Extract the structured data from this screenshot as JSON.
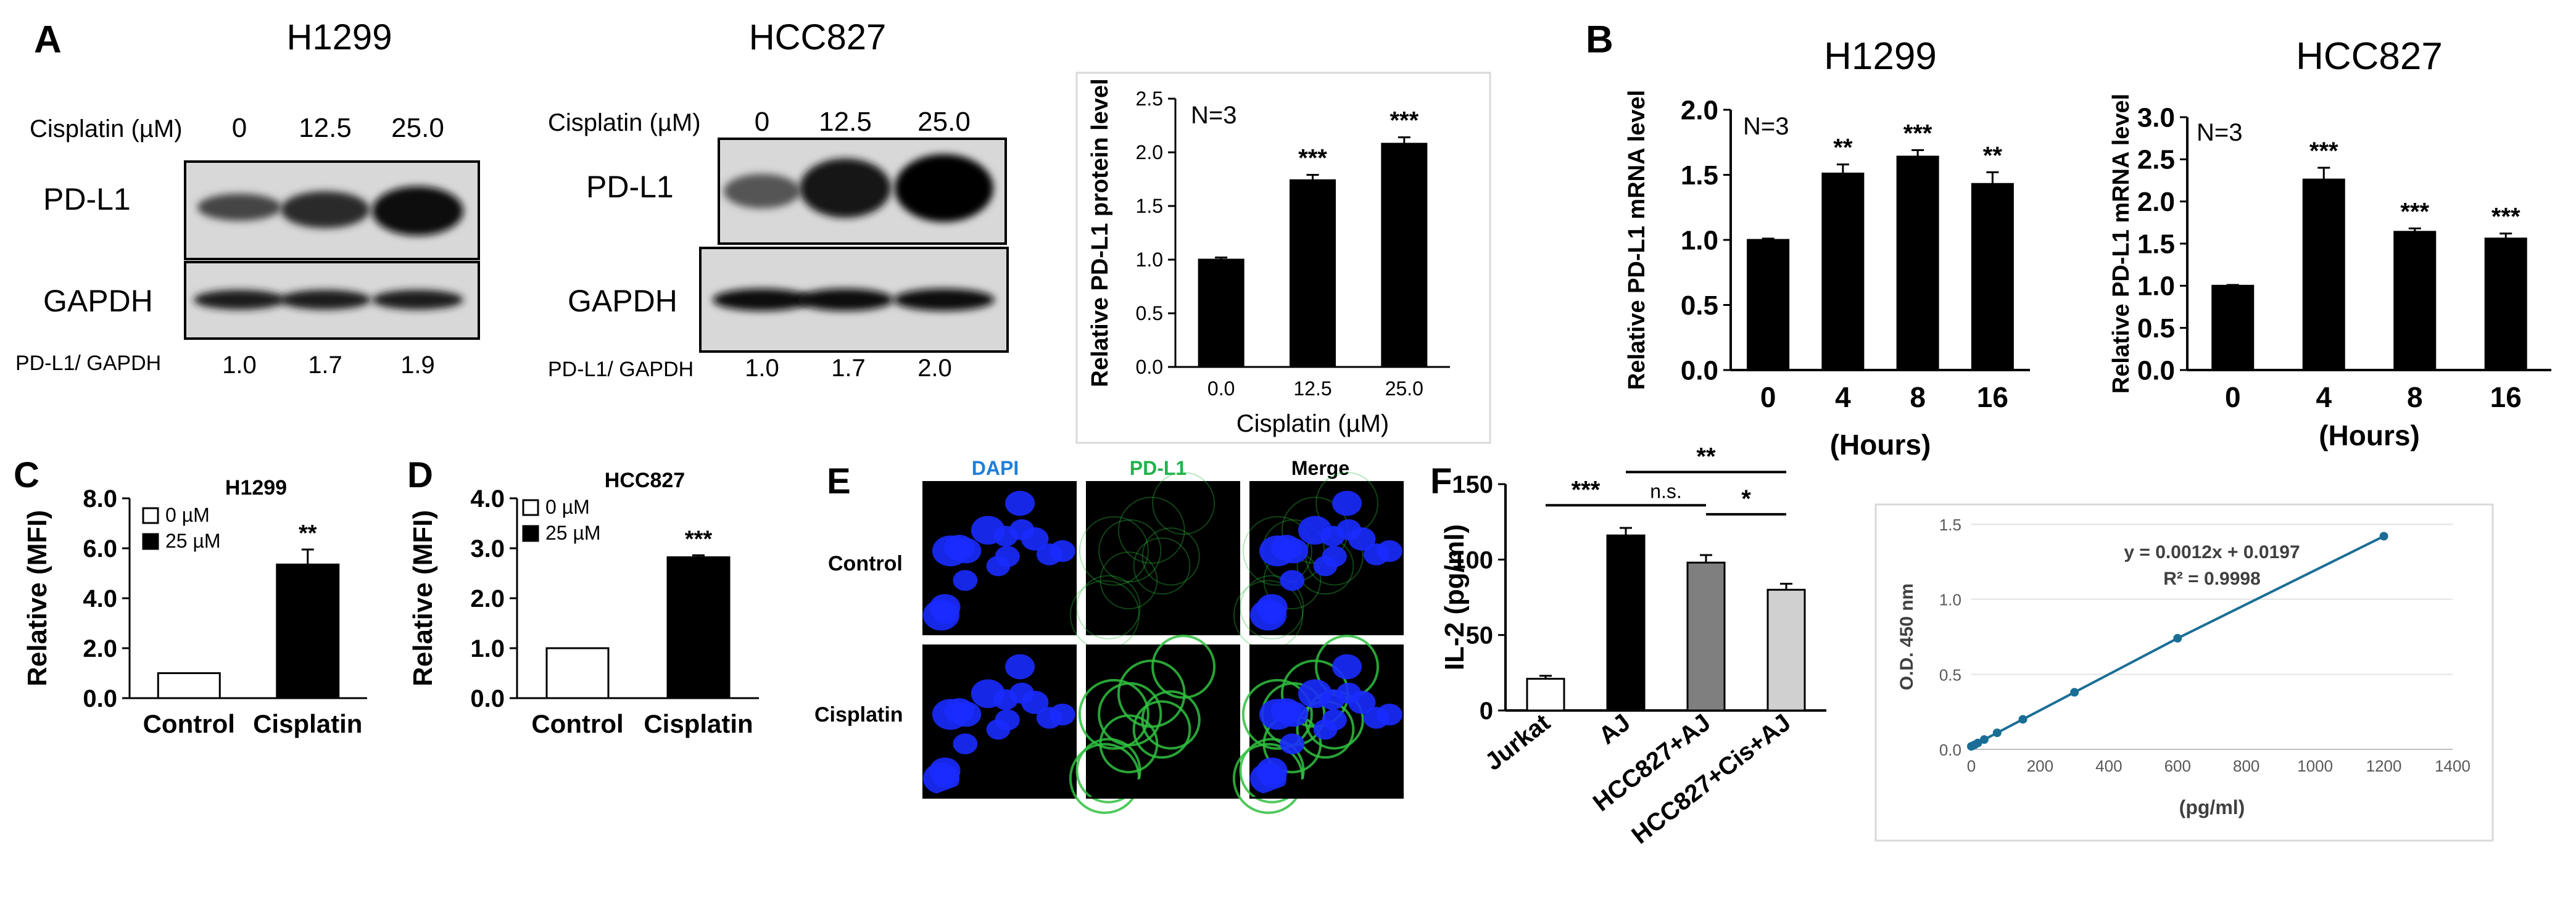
{
  "panel_letters": [
    "A",
    "B",
    "C",
    "D",
    "E",
    "F"
  ],
  "panelA": {
    "h1299": {
      "title": "H1299",
      "treatment_label": "Cisplatin (µM)",
      "doses": [
        "0",
        "12.5",
        "25.0"
      ],
      "bands": [
        "PD-L1",
        "GAPDH"
      ],
      "ratio_label": "PD-L1/ GAPDH",
      "ratios": [
        "1.0",
        "1.7",
        "1.9"
      ]
    },
    "hcc827": {
      "title": "HCC827",
      "treatment_label": "Cisplatin (µM)",
      "doses": [
        "0",
        "12.5",
        "25.0"
      ],
      "bands": [
        "PD-L1",
        "GAPDH"
      ],
      "ratio_label": "PD-L1/ GAPDH",
      "ratios": [
        "1.0",
        "1.7",
        "2.0"
      ]
    }
  },
  "panelE": {
    "channels": [
      "DAPI",
      "PD-L1",
      "Merge"
    ],
    "channel_colors": [
      "#1f7fd8",
      "#22b24c",
      "#000000"
    ],
    "rows": [
      "Control",
      "Cisplatin"
    ]
  },
  "chart_data": [
    {
      "id": "A-bar",
      "type": "bar",
      "categories": [
        "0.0",
        "12.5",
        "25.0"
      ],
      "values": [
        1.0,
        1.74,
        2.08
      ],
      "errors": [
        0.02,
        0.05,
        0.06
      ],
      "significance": [
        "",
        "***",
        "***"
      ],
      "xlabel": "Cisplatin (µM)",
      "ylabel": "Relative PD-L1 protein level",
      "ylim": [
        0,
        2.5
      ],
      "yticks": [
        "0.0",
        "0.5",
        "1.0",
        "1.5",
        "2.0",
        "2.5"
      ],
      "annotation": "N=3",
      "bar_color": "#000000"
    },
    {
      "id": "B-H1299",
      "type": "bar",
      "title": "H1299",
      "categories": [
        "0",
        "4",
        "8",
        "16"
      ],
      "values": [
        1.0,
        1.51,
        1.64,
        1.43
      ],
      "errors": [
        0.01,
        0.07,
        0.05,
        0.09
      ],
      "significance": [
        "",
        "**",
        "***",
        "**"
      ],
      "xlabel": "(Hours)",
      "ylabel": "Relative PD-L1 mRNA level",
      "ylim": [
        0,
        2.0
      ],
      "yticks": [
        "0.0",
        "0.5",
        "1.0",
        "1.5",
        "2.0"
      ],
      "annotation": "N=3",
      "bar_color": "#000000"
    },
    {
      "id": "B-HCC827",
      "type": "bar",
      "title": "HCC827",
      "categories": [
        "0",
        "4",
        "8",
        "16"
      ],
      "values": [
        1.0,
        2.26,
        1.64,
        1.56
      ],
      "errors": [
        0.01,
        0.14,
        0.04,
        0.06
      ],
      "significance": [
        "",
        "***",
        "***",
        "***"
      ],
      "xlabel": "(Hours)",
      "ylabel": "Relative PD-L1 mRNA level",
      "ylim": [
        0,
        3.0
      ],
      "yticks": [
        "0.0",
        "0.5",
        "1.0",
        "1.5",
        "2.0",
        "2.5",
        "3.0"
      ],
      "annotation": "N=3",
      "bar_color": "#000000"
    },
    {
      "id": "C",
      "type": "bar",
      "title": "H1299",
      "categories": [
        "Control",
        "Cisplatin"
      ],
      "values": [
        1.0,
        5.35
      ],
      "errors": [
        0,
        0.6
      ],
      "significance": [
        "",
        "**"
      ],
      "ylabel": "Relative (MFI)",
      "ylim": [
        0,
        8.0
      ],
      "yticks": [
        "0.0",
        "2.0",
        "4.0",
        "6.0",
        "8.0"
      ],
      "legend": [
        "0 µM",
        "25 µM"
      ],
      "fills": [
        "#ffffff",
        "#000000"
      ]
    },
    {
      "id": "D",
      "type": "bar",
      "title": "HCC827",
      "categories": [
        "Control",
        "Cisplatin"
      ],
      "values": [
        1.0,
        2.82
      ],
      "errors": [
        0,
        0.04
      ],
      "significance": [
        "",
        "***"
      ],
      "ylabel": "Relative (MFI)",
      "ylim": [
        0,
        4.0
      ],
      "yticks": [
        "0.0",
        "1.0",
        "2.0",
        "3.0",
        "4.0"
      ],
      "legend": [
        "0 µM",
        "25 µM"
      ],
      "fills": [
        "#ffffff",
        "#000000"
      ]
    },
    {
      "id": "F-bar",
      "type": "bar",
      "categories": [
        "Jurkat",
        "AJ",
        "HCC827+AJ",
        "HCC827+Cis+AJ"
      ],
      "values": [
        21,
        116,
        98,
        80
      ],
      "errors": [
        2,
        5,
        5,
        4
      ],
      "ylabel": "IL-2 (pg/ml)",
      "ylim": [
        0,
        150
      ],
      "yticks": [
        "0",
        "50",
        "100",
        "150"
      ],
      "fills": [
        "#ffffff",
        "#000000",
        "#7f7f7f",
        "#d0d0d0"
      ],
      "comparisons": [
        {
          "from": 0,
          "to": 1,
          "label": "***"
        },
        {
          "from": 1,
          "to": 2,
          "label": "n.s."
        },
        {
          "from": 1,
          "to": 3,
          "label": "**"
        },
        {
          "from": 2,
          "to": 3,
          "label": "*"
        }
      ]
    },
    {
      "id": "F-standard",
      "type": "scatter",
      "x": [
        0,
        9.375,
        18.75,
        37.5,
        75,
        150,
        300,
        600,
        1200
      ],
      "y": [
        0.02,
        0.03,
        0.042,
        0.065,
        0.11,
        0.2,
        0.38,
        0.74,
        1.42
      ],
      "xlabel": "(pg/ml)",
      "ylabel": "O.D. 450 nm",
      "xlim": [
        0,
        1400
      ],
      "ylim": [
        0,
        1.5
      ],
      "xticks": [
        "0",
        "200",
        "400",
        "600",
        "800",
        "1000",
        "1200",
        "1400"
      ],
      "yticks": [
        "0.0",
        "0.5",
        "1.0",
        "1.5"
      ],
      "equation": "y = 0.0012x + 0.0197",
      "r2": "R² = 0.9998",
      "line_color": "#1a6e96",
      "grid": true
    }
  ]
}
